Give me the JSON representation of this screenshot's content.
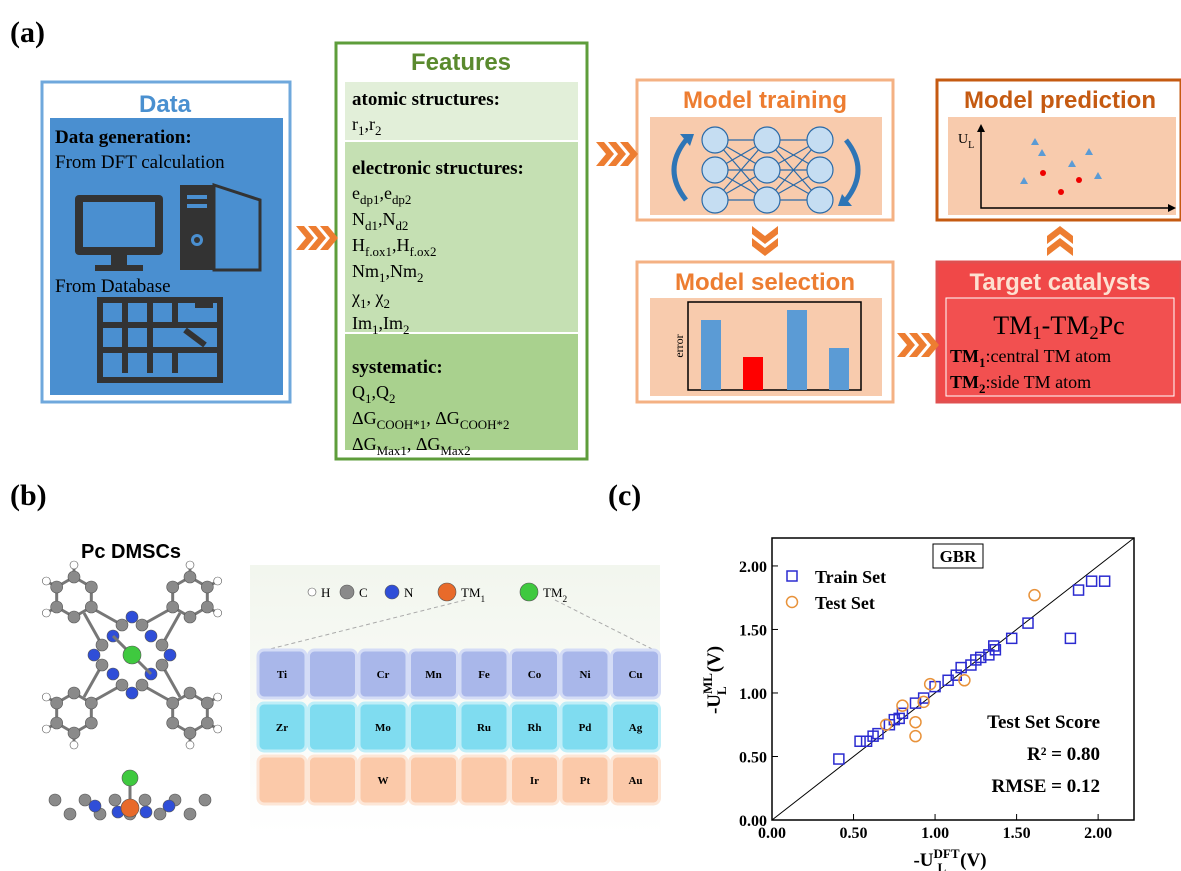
{
  "panel_labels": [
    "(a)",
    "(b)",
    "(c)"
  ],
  "data_box": {
    "title": "Data",
    "heading": "Data generation:",
    "source1": "From DFT calculation",
    "source2": "From Database"
  },
  "features": {
    "title": "Features",
    "sections": [
      {
        "heading": "atomic structures:",
        "lines": [
          [
            "r",
            "1",
            ",r",
            "2"
          ]
        ]
      },
      {
        "heading": "electronic structures:",
        "lines": [
          [
            "e",
            "dp1",
            ",e",
            "dp2"
          ],
          [
            "N",
            "d1",
            ",N",
            "d2"
          ],
          [
            "H",
            "f.ox1",
            ",H",
            "f.ox2"
          ],
          [
            "Nm",
            "1",
            ",Nm",
            "2"
          ],
          [
            "χ",
            "1",
            ", χ",
            "2"
          ],
          [
            "Im",
            "1",
            ",Im",
            "2"
          ]
        ]
      },
      {
        "heading": "systematic:",
        "lines": [
          [
            "Q",
            "1",
            ",Q",
            "2"
          ],
          [
            "ΔG",
            "COOH*1",
            ", ΔG",
            "COOH*2"
          ],
          [
            "ΔG",
            "Max1",
            ", ΔG",
            "Max2"
          ]
        ]
      }
    ]
  },
  "model_training": {
    "title": "Model training"
  },
  "model_selection": {
    "title": "Model selection",
    "axis_label": "error"
  },
  "model_prediction": {
    "title": "Model prediction",
    "axis_label": [
      "U",
      "L"
    ]
  },
  "target": {
    "title": "Target catalysts",
    "formula": [
      "TM",
      "1",
      "-TM",
      "2",
      "Pc"
    ],
    "lines": [
      [
        "TM",
        "1",
        ":central TM atom"
      ],
      [
        "TM",
        "2",
        ":side TM atom"
      ]
    ]
  },
  "panel_b": {
    "title": "Pc DMSCs",
    "legend": [
      [
        "H"
      ],
      [
        "C"
      ],
      [
        "N"
      ],
      [
        "TM",
        "1"
      ],
      [
        "TM",
        "2"
      ]
    ],
    "table": [
      [
        "Ti",
        null,
        "Cr",
        "Mn",
        "Fe",
        "Co",
        "Ni",
        "Cu"
      ],
      [
        "Zr",
        null,
        "Mo",
        null,
        "Ru",
        "Rh",
        "Pd",
        "Ag"
      ],
      [
        null,
        null,
        "W",
        null,
        null,
        "Ir",
        "Pt",
        "Au"
      ]
    ]
  },
  "chart_data": {
    "type": "scatter",
    "title": "GBR",
    "xlabel": [
      "-U",
      "DFT",
      "L",
      "(V)"
    ],
    "ylabel": [
      "-U",
      "ML",
      "L",
      "(V)"
    ],
    "xlim": [
      0,
      2.22
    ],
    "ylim": [
      0,
      2.22
    ],
    "xticks": [
      {
        "value": 0,
        "label": "0.00"
      },
      {
        "value": 0.5,
        "label": "0.50"
      },
      {
        "value": 1,
        "label": "1.00"
      },
      {
        "value": 1.5,
        "label": "1.50"
      },
      {
        "value": 2,
        "label": "2.00"
      }
    ],
    "yticks": [
      {
        "value": 0,
        "label": "0.00"
      },
      {
        "value": 0.5,
        "label": "0.50"
      },
      {
        "value": 1,
        "label": "1.00"
      },
      {
        "value": 1.5,
        "label": "1.50"
      },
      {
        "value": 2,
        "label": "2.00"
      }
    ],
    "series": [
      {
        "name": "Train Set",
        "color": "#2b2bd0",
        "marker": "square",
        "x": [
          0.41,
          0.54,
          0.58,
          0.62,
          0.65,
          0.72,
          0.75,
          0.78,
          0.8,
          0.88,
          0.93,
          1.0,
          1.08,
          1.13,
          1.16,
          1.22,
          1.25,
          1.28,
          1.33,
          1.36,
          1.37,
          1.47,
          1.57,
          1.83,
          1.88,
          1.96,
          2.04
        ],
        "values": [
          0.48,
          0.62,
          0.62,
          0.66,
          0.68,
          0.75,
          0.79,
          0.8,
          0.84,
          0.92,
          0.96,
          1.05,
          1.1,
          1.14,
          1.2,
          1.22,
          1.26,
          1.28,
          1.3,
          1.37,
          1.34,
          1.43,
          1.55,
          1.43,
          1.81,
          1.88,
          1.88
        ]
      },
      {
        "name": "Test Set",
        "color": "#e8923a",
        "marker": "circle",
        "x": [
          0.7,
          0.8,
          0.88,
          0.88,
          0.93,
          0.97,
          1.18,
          1.61
        ],
        "values": [
          0.75,
          0.9,
          0.77,
          0.66,
          0.93,
          1.07,
          1.1,
          1.77
        ]
      }
    ],
    "annotations": [
      "Test Set Score",
      "R² = 0.80",
      "RMSE = 0.12"
    ]
  }
}
